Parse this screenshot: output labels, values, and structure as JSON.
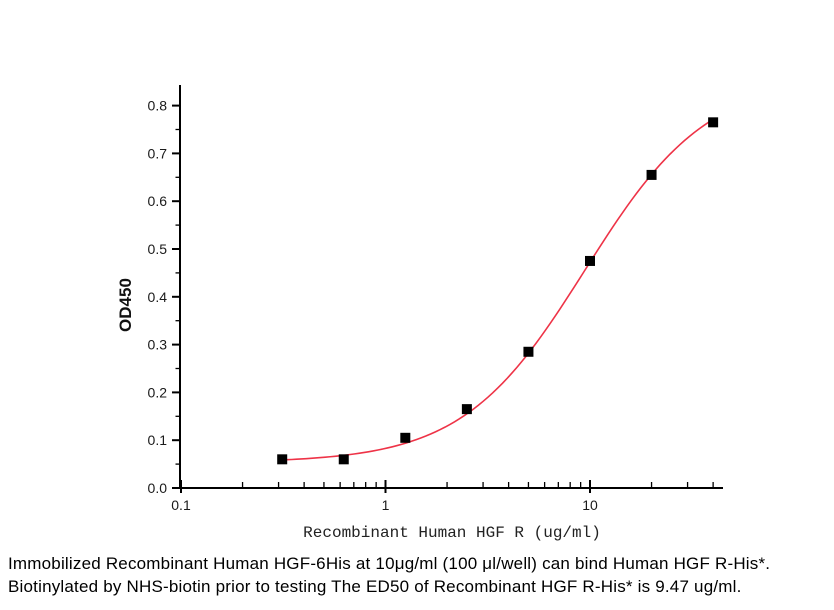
{
  "figure": {
    "background": "#ffffff"
  },
  "chart_data": {
    "type": "scatter",
    "title": "",
    "xlabel": "Recombinant Human HGF R (ug/ml)",
    "ylabel": "OD450",
    "x_scale": "log",
    "xlim": [
      0.1,
      45
    ],
    "ylim": [
      0,
      0.845
    ],
    "grid": false,
    "legend_position": "none",
    "x_major_ticks": [
      0.1,
      1,
      10
    ],
    "x_major_tick_labels": [
      "0.1",
      "1",
      "10"
    ],
    "y_major_ticks": [
      0,
      0.1,
      0.2,
      0.3,
      0.4,
      0.5,
      0.6,
      0.7,
      0.8
    ],
    "y_major_tick_labels": [
      "0.0",
      "0.1",
      "0.2",
      "0.3",
      "0.4",
      "0.5",
      "0.6",
      "0.7",
      "0.8"
    ],
    "y_minor_tick_step": 0.05,
    "series": [
      {
        "marker": "square",
        "marker_color": "#000000",
        "marker_size": 10,
        "line_color": "#ee3347",
        "x": [
          0.3125,
          0.625,
          1.25,
          2.5,
          5,
          10,
          20,
          40
        ],
        "y": [
          0.06,
          0.06,
          0.105,
          0.165,
          0.285,
          0.475,
          0.655,
          0.765
        ]
      }
    ],
    "fit_curve": {
      "model": "4PL",
      "bottom": 0.053,
      "top": 0.86,
      "ed50": 9.47,
      "hill": 1.45
    },
    "axis_color": "#000000"
  },
  "caption": {
    "line1": "Immobilized Recombinant Human HGF-6His at 10μg/ml (100 μl/well) can bind Human HGF R-His*.",
    "line2": "Biotinylated by NHS-biotin prior to testing The ED50 of Recombinant HGF R-His* is 9.47 ug/ml."
  }
}
